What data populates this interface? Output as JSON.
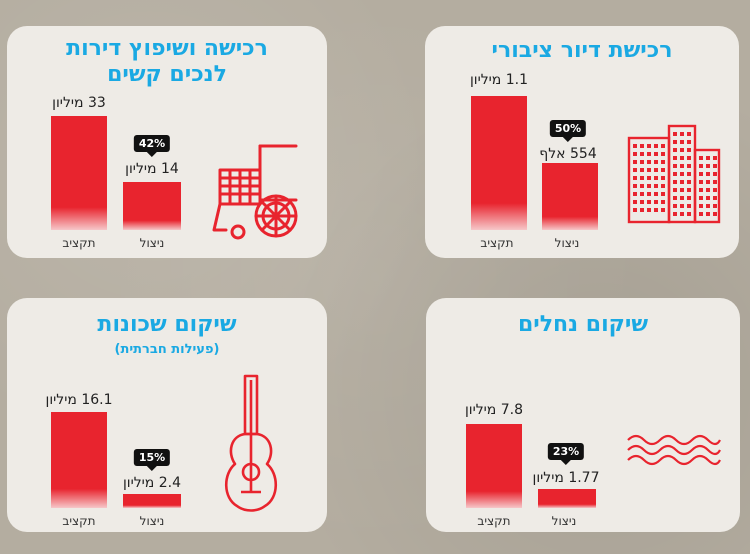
{
  "colors": {
    "bar": "#e8242e",
    "title": "#1aa9e3",
    "panel": "#eeebe6",
    "badge": "#111111",
    "background": "#b4ada0"
  },
  "panels": [
    {
      "title": "רכישת דיור ציבורי",
      "icon": "buildings-icon",
      "budget_label": "תקציב",
      "actual_label": "ניצול",
      "budget_text": "1.1 מיליון",
      "actual_text": "554 אלף",
      "percent_text": "50%"
    },
    {
      "title": "רכישה ושיפוץ דירות לנכים קשים",
      "icon": "wheelchair-icon",
      "budget_label": "תקציב",
      "actual_label": "ניצול",
      "budget_text": "33 מיליון",
      "actual_text": "14 מיליון",
      "percent_text": "42%"
    },
    {
      "title": "שיקום נחלים",
      "icon": "waves-icon",
      "budget_label": "תקציב",
      "actual_label": "ניצול",
      "budget_text": "7.8 מיליון",
      "actual_text": "1.77 מיליון",
      "percent_text": "23%"
    },
    {
      "title": "שיקום שכונות",
      "subtitle": "(פעילות חברתית)",
      "icon": "guitar-icon",
      "budget_label": "תקציב",
      "actual_label": "ניצול",
      "budget_text": "16.1 מיליון",
      "actual_text": "2.4 מיליון",
      "percent_text": "15%"
    }
  ],
  "chart_data": [
    {
      "type": "bar",
      "title": "רכישת דיור ציבורי",
      "categories": [
        "תקציב",
        "ניצול"
      ],
      "values": [
        1100000,
        554000
      ],
      "annotation": "50%"
    },
    {
      "type": "bar",
      "title": "רכישה ושיפוץ דירות לנכים קשים",
      "categories": [
        "תקציב",
        "ניצול"
      ],
      "values": [
        33000000,
        14000000
      ],
      "annotation": "42%"
    },
    {
      "type": "bar",
      "title": "שיקום נחלים",
      "categories": [
        "תקציב",
        "ניצול"
      ],
      "values": [
        7800000,
        1770000
      ],
      "annotation": "23%"
    },
    {
      "type": "bar",
      "title": "שיקום שכונות",
      "subtitle": "(פעילות חברתית)",
      "categories": [
        "תקציב",
        "ניצול"
      ],
      "values": [
        16100000,
        2400000
      ],
      "annotation": "15%"
    }
  ]
}
